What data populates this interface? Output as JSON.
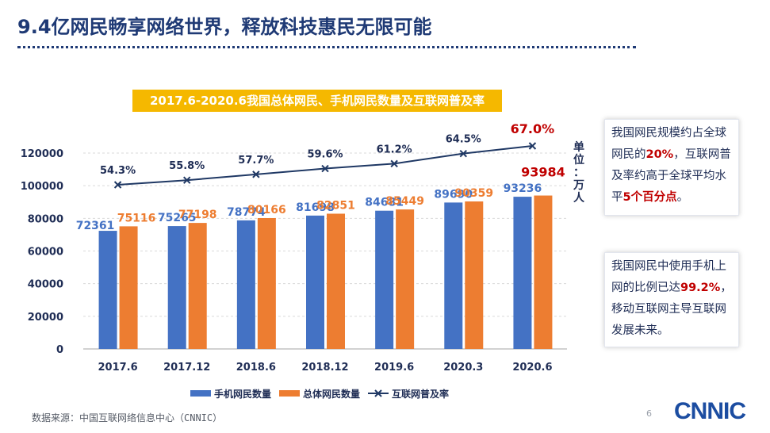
{
  "page": {
    "title": "9.4亿网民畅享网络世界，释放科技惠民无限可能",
    "source": "数据来源：中国互联网络信息中心（CNNIC）",
    "page_number": "6",
    "logo_text": "CNNIC",
    "unit_label": [
      "单",
      "位",
      "：",
      "万",
      "人"
    ]
  },
  "side_boxes": {
    "box1": {
      "pre": "我国网民规模约占全球网民的",
      "hl1": "20%",
      "mid": "，互联网普及率约高于全球平均水平",
      "hl2": "5个百分点",
      "post": "。"
    },
    "box2": {
      "pre": "我国网民中使用手机上网的比例已达",
      "hl1": "99.2%",
      "post": "，移动互联网主导互联网发展未来。"
    }
  },
  "colors": {
    "mobile": "#4472c4",
    "total": "#ed7d31",
    "line": "#1f3864",
    "highlight": "#c00000",
    "title_bg": "#f5b800"
  },
  "chart_data": {
    "type": "bar",
    "title": "2017.6-2020.6我国总体网民、手机网民数量及互联网普及率",
    "categories": [
      "2017.6",
      "2017.12",
      "2018.6",
      "2018.12",
      "2019.6",
      "2020.3",
      "2020.6"
    ],
    "series": [
      {
        "name": "手机网民数量",
        "values": [
          72361,
          75265,
          78774,
          81698,
          84681,
          89690,
          93236
        ]
      },
      {
        "name": "总体网民数量",
        "values": [
          75116,
          77198,
          80166,
          82851,
          85449,
          90359,
          93984
        ]
      },
      {
        "name": "互联网普及率",
        "type": "line",
        "values": [
          54.3,
          55.8,
          57.7,
          59.6,
          61.2,
          64.5,
          67.0
        ],
        "labels": [
          "54.3%",
          "55.8%",
          "57.7%",
          "59.6%",
          "61.2%",
          "64.5%",
          "67.0%"
        ]
      }
    ],
    "yticks": [
      "0",
      "20000",
      "40000",
      "60000",
      "80000",
      "100000",
      "120000"
    ],
    "ylim": [
      0,
      120000
    ],
    "ylabel": "单位：万人",
    "legend": [
      "手机网民数量",
      "总体网民数量",
      "互联网普及率"
    ],
    "legend_position": "bottom"
  }
}
